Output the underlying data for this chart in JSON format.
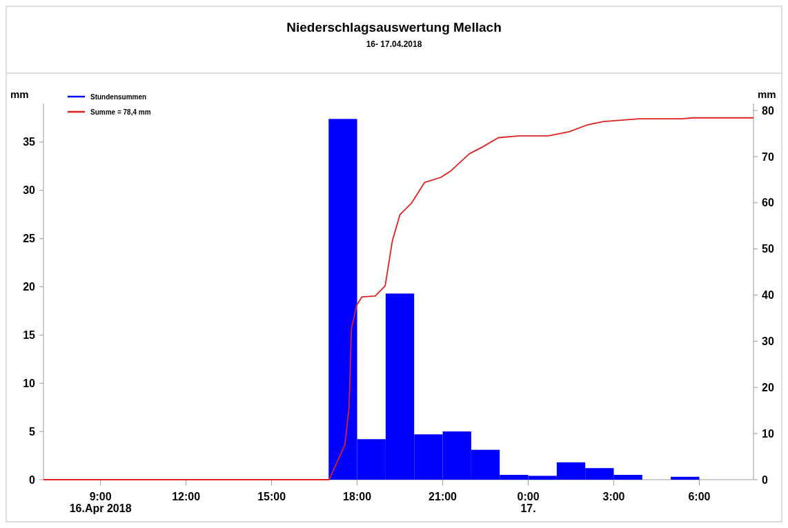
{
  "chart_data": {
    "type": "bar",
    "title": "Niederschlagsauswertung Mellach",
    "subtitle": "16- 17.04.2018",
    "ylabel": "mm",
    "y2label": "mm",
    "xlim": [
      "2018-04-16T07:00",
      "2018-04-17T07:54"
    ],
    "xticks": [
      {
        "value": "2018-04-16T09:00",
        "label": "9:00\n16.Apr 2018"
      },
      {
        "value": "2018-04-16T12:00",
        "label": "12:00"
      },
      {
        "value": "2018-04-16T15:00",
        "label": "15:00"
      },
      {
        "value": "2018-04-16T18:00",
        "label": "18:00"
      },
      {
        "value": "2018-04-16T21:00",
        "label": "21:00"
      },
      {
        "value": "2018-04-17T00:00",
        "label": "0:00\n17."
      },
      {
        "value": "2018-04-17T03:00",
        "label": "3:00"
      },
      {
        "value": "2018-04-17T06:00",
        "label": "6:00"
      }
    ],
    "ylim": [
      0,
      39
    ],
    "yticks": [
      0,
      5,
      10,
      15,
      20,
      25,
      30,
      35
    ],
    "y2lim": [
      0,
      81.5
    ],
    "y2ticks": [
      0,
      10,
      20,
      30,
      40,
      50,
      60,
      70,
      80
    ],
    "legend": "top left",
    "series": [
      {
        "name": "Stundensummen",
        "color": "#0000ff",
        "x": [
          "2018-04-16T17:30",
          "2018-04-16T18:30",
          "2018-04-16T19:30",
          "2018-04-16T20:30",
          "2018-04-16T21:30",
          "2018-04-16T22:30",
          "2018-04-16T23:30",
          "2018-04-17T00:30",
          "2018-04-17T01:30",
          "2018-04-17T02:30",
          "2018-04-17T03:30",
          "2018-04-17T04:30",
          "2018-04-17T05:30"
        ],
        "values": [
          37.4,
          4.2,
          19.3,
          4.7,
          5.0,
          3.1,
          0.5,
          0.4,
          1.8,
          1.2,
          0.5,
          0,
          0.3
        ]
      },
      {
        "name": "Summe = 78,4 mm",
        "type": "line",
        "axis": "y2",
        "color": "#e02020",
        "x": [
          "2018-04-16T07:00",
          "2018-04-16T17:01",
          "2018-04-16T17:34",
          "2018-04-16T17:43",
          "2018-04-16T17:48",
          "2018-04-16T17:59",
          "2018-04-16T18:10",
          "2018-04-16T18:38",
          "2018-04-16T18:59",
          "2018-04-16T19:14",
          "2018-04-16T19:30",
          "2018-04-16T19:55",
          "2018-04-16T20:22",
          "2018-04-16T20:56",
          "2018-04-16T21:17",
          "2018-04-16T21:56",
          "2018-04-16T22:24",
          "2018-04-16T22:57",
          "2018-04-16T23:41",
          "2018-04-17T00:42",
          "2018-04-17T01:26",
          "2018-04-17T02:05",
          "2018-04-17T02:38",
          "2018-04-17T03:54",
          "2018-04-17T05:24",
          "2018-04-17T05:46",
          "2018-04-17T07:54"
        ],
        "values": [
          0,
          0,
          7.5,
          15.6,
          32.7,
          37.8,
          39.6,
          39.8,
          42,
          51.7,
          57.4,
          60,
          64.4,
          65.5,
          66.9,
          70.6,
          72.1,
          74.1,
          74.5,
          74.5,
          75.4,
          76.9,
          77.6,
          78.2,
          78.2,
          78.4,
          78.4
        ]
      }
    ]
  }
}
